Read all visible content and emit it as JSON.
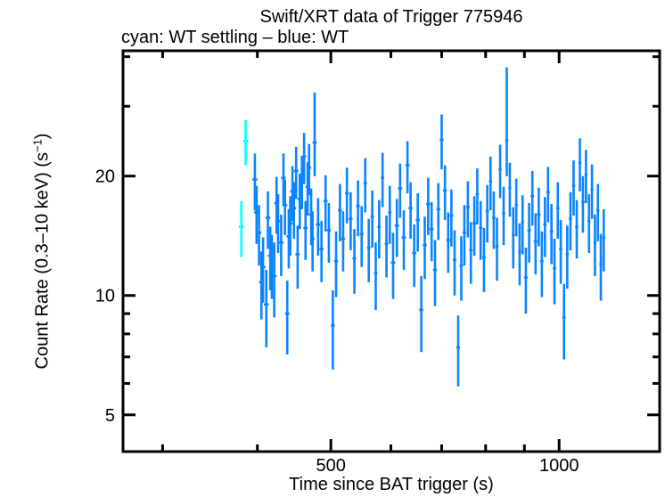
{
  "page": {
    "title": "Swift/XRT data of Trigger 775946",
    "subtitle": "cyan: WT settling – blue: WT"
  },
  "chart_data": {
    "type": "scatter",
    "title": "Swift/XRT data of Trigger 775946",
    "subtitle": "cyan: WT settling – blue: WT",
    "xlabel": "Time since BAT trigger (s)",
    "ylabel": "Count Rate (0.3–10 keV) (s⁻¹)",
    "ylabel_parts": {
      "pre": "Count Rate (0.3–10 keV) (s",
      "sup": "−1",
      "post": ")"
    },
    "xscale": "log",
    "yscale": "log",
    "xlim": [
      266,
      1357
    ],
    "ylim": [
      4.04,
      41.4
    ],
    "grid": false,
    "legend_position": "subtitle-text",
    "xticks_major": [
      {
        "value": 500,
        "label": "500"
      },
      {
        "value": 1000,
        "label": "1000"
      }
    ],
    "xticks_minor": [
      300,
      400,
      600,
      700,
      800,
      900
    ],
    "yticks_major": [
      {
        "value": 5,
        "label": "5"
      },
      {
        "value": 10,
        "label": "10"
      },
      {
        "value": 20,
        "label": "20"
      }
    ],
    "yticks_minor": [
      6,
      7,
      8,
      9,
      30,
      40
    ],
    "colors": {
      "wt_settling": "#00ffff",
      "wt": "#0a84ff",
      "frame": "#000000"
    },
    "points_format": [
      "time_s",
      "time_halfwidth_s",
      "count_rate",
      "err_minus",
      "err_plus_optional"
    ],
    "series": [
      {
        "name": "WT settling",
        "color": "#00ffff",
        "points": [
          [
            381,
            3,
            14.9,
            2.4
          ],
          [
            386,
            3,
            24.5,
            3.2
          ]
        ]
      },
      {
        "name": "WT",
        "color": "#0a84ff",
        "points": [
          [
            397,
            3,
            19.6,
            3.2
          ],
          [
            399,
            3,
            16.2,
            2.7
          ],
          [
            402,
            3,
            14.4,
            2.5
          ],
          [
            405,
            3,
            10.8,
            2.1
          ],
          [
            407,
            3,
            11.8,
            2.2
          ],
          [
            411,
            3,
            9.5,
            2.1
          ],
          [
            413,
            3,
            15.7,
            2.6
          ],
          [
            416,
            3,
            12.6,
            2.3
          ],
          [
            418,
            3,
            12.0,
            2.2
          ],
          [
            421,
            3,
            11.2,
            2.4
          ],
          [
            424,
            3,
            17.1,
            2.8
          ],
          [
            426,
            3,
            15.4,
            2.6
          ],
          [
            430,
            3,
            13.6,
            2.4
          ],
          [
            433,
            3,
            19.8,
            3.0
          ],
          [
            435,
            3,
            16.9,
            2.7
          ],
          [
            438,
            3,
            9.0,
            1.9
          ],
          [
            440,
            3,
            14.1,
            2.4
          ],
          [
            442,
            3,
            15.2,
            2.6
          ],
          [
            445,
            3,
            18.3,
            2.9
          ],
          [
            447,
            3,
            16.6,
            2.7
          ],
          [
            450,
            3,
            20.6,
            3.1
          ],
          [
            452,
            3,
            12.7,
            2.3
          ],
          [
            455,
            3,
            17.5,
            2.8
          ],
          [
            458,
            3,
            19.5,
            3.0
          ],
          [
            461,
            3,
            22.4,
            3.3
          ],
          [
            463,
            3,
            14.8,
            2.5
          ],
          [
            466,
            3,
            18.8,
            2.9
          ],
          [
            468,
            3,
            21.0,
            3.1
          ],
          [
            471,
            3,
            16.0,
            2.6
          ],
          [
            473,
            3,
            13.9,
            2.4
          ],
          [
            476,
            3,
            24.3,
            4.3,
            8.2
          ],
          [
            481,
            3,
            15.1,
            2.5
          ],
          [
            486,
            3,
            13.1,
            2.3
          ],
          [
            492,
            3,
            17.3,
            2.8
          ],
          [
            497,
            3,
            14.6,
            2.5
          ],
          [
            503,
            3,
            8.4,
            1.9
          ],
          [
            508,
            3,
            12.2,
            2.3
          ],
          [
            514,
            3,
            16.4,
            2.7
          ],
          [
            519,
            3,
            13.9,
            2.4
          ],
          [
            525,
            3,
            18.1,
            2.9
          ],
          [
            531,
            3,
            15.6,
            2.6
          ],
          [
            537,
            3,
            12.4,
            2.3
          ],
          [
            543,
            3,
            16.8,
            2.7
          ],
          [
            549,
            3,
            14.3,
            2.5
          ],
          [
            555,
            3,
            19.2,
            3.0
          ],
          [
            561,
            3,
            13.2,
            2.4
          ],
          [
            567,
            3,
            15.8,
            2.6
          ],
          [
            573,
            3,
            11.4,
            2.2
          ],
          [
            579,
            3,
            14.9,
            2.5
          ],
          [
            585,
            3,
            19.8,
            3.1
          ],
          [
            592,
            3,
            13.5,
            2.4
          ],
          [
            598,
            3,
            16.2,
            2.7
          ],
          [
            604,
            4,
            12.1,
            2.3
          ],
          [
            611,
            4,
            15.0,
            2.5
          ],
          [
            617,
            4,
            18.6,
            2.9
          ],
          [
            624,
            4,
            14.0,
            2.4
          ],
          [
            631,
            4,
            21.3,
            3.2
          ],
          [
            637,
            4,
            16.6,
            2.7
          ],
          [
            644,
            4,
            12.8,
            2.3
          ],
          [
            651,
            4,
            15.5,
            2.6
          ],
          [
            658,
            4,
            9.2,
            2.0
          ],
          [
            665,
            4,
            13.4,
            2.4
          ],
          [
            672,
            4,
            17.0,
            2.8
          ],
          [
            679,
            4,
            14.7,
            2.5
          ],
          [
            686,
            4,
            11.6,
            2.2
          ],
          [
            693,
            4,
            16.5,
            2.7
          ],
          [
            700,
            4,
            24.7,
            3.9
          ],
          [
            707,
            4,
            18.4,
            2.9
          ],
          [
            714,
            4,
            13.8,
            2.4
          ],
          [
            721,
            4,
            15.9,
            2.6
          ],
          [
            728,
            4,
            12.3,
            2.3
          ],
          [
            736,
            4,
            7.4,
            1.5
          ],
          [
            743,
            4,
            11.9,
            2.2
          ],
          [
            750,
            4,
            14.4,
            2.5
          ],
          [
            758,
            4,
            16.7,
            2.7
          ],
          [
            765,
            4,
            13.0,
            2.3
          ],
          [
            773,
            4,
            15.2,
            2.6
          ],
          [
            780,
            4,
            18.0,
            2.9
          ],
          [
            788,
            4,
            14.8,
            2.5
          ],
          [
            796,
            4,
            12.5,
            2.3
          ],
          [
            804,
            4,
            16.3,
            2.7
          ],
          [
            812,
            4,
            19.4,
            3.0
          ],
          [
            820,
            4,
            15.7,
            2.6
          ],
          [
            828,
            4,
            13.3,
            2.4
          ],
          [
            836,
            4,
            20.8,
            3.2
          ],
          [
            845,
            4,
            16.1,
            2.7
          ],
          [
            853,
            4,
            24.6,
            4.6,
            13.0
          ],
          [
            861,
            4,
            18.7,
            2.9
          ],
          [
            870,
            4,
            14.2,
            2.5
          ],
          [
            878,
            4,
            16.9,
            2.8
          ],
          [
            887,
            4,
            12.9,
            2.3
          ],
          [
            895,
            4,
            15.3,
            2.6
          ],
          [
            904,
            5,
            11.1,
            2.1
          ],
          [
            913,
            5,
            14.6,
            2.5
          ],
          [
            922,
            5,
            17.8,
            2.8
          ],
          [
            931,
            5,
            13.7,
            2.4
          ],
          [
            940,
            5,
            16.0,
            2.7
          ],
          [
            949,
            5,
            12.2,
            2.3
          ],
          [
            958,
            5,
            15.1,
            2.6
          ],
          [
            967,
            5,
            18.2,
            2.9
          ],
          [
            977,
            5,
            14.5,
            2.5
          ],
          [
            986,
            5,
            11.7,
            2.2
          ],
          [
            996,
            5,
            16.6,
            2.7
          ],
          [
            1005,
            5,
            13.1,
            2.4
          ],
          [
            1015,
            5,
            8.8,
            1.9
          ],
          [
            1025,
            5,
            12.7,
            2.3
          ],
          [
            1035,
            5,
            15.6,
            2.6
          ],
          [
            1045,
            5,
            18.9,
            3.0
          ],
          [
            1055,
            5,
            14.9,
            2.5
          ],
          [
            1065,
            5,
            21.6,
            3.3
          ],
          [
            1075,
            5,
            17.2,
            2.8
          ],
          [
            1085,
            5,
            20.2,
            3.1
          ],
          [
            1095,
            5,
            15.4,
            2.6
          ],
          [
            1105,
            5,
            18.5,
            2.9
          ],
          [
            1115,
            5,
            13.6,
            2.4
          ],
          [
            1125,
            5,
            16.4,
            2.7
          ],
          [
            1135,
            5,
            12.0,
            2.3
          ],
          [
            1145,
            5,
            14.0,
            2.5
          ]
        ]
      }
    ]
  }
}
